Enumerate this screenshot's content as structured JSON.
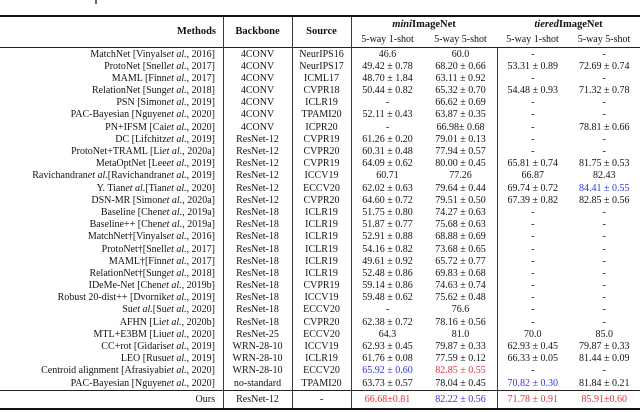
{
  "table": {
    "header": {
      "methods": "Methods",
      "backbone": "Backbone",
      "source": "Source",
      "groups": [
        {
          "prefix": "mini",
          "suffix": "ImageNet"
        },
        {
          "prefix": "tiered",
          "suffix": "ImageNet"
        }
      ],
      "subcolumns": [
        "5-way 1-shot",
        "5-way 5-shot",
        "5-way 1-shot",
        "5-way 5-shot"
      ]
    },
    "highlight_colors": {
      "red": "#e03434",
      "blue": "#3434e0"
    },
    "rows": [
      {
        "method": "MatchNet [Vinyals et al., 2016]",
        "backbone": "4CONV",
        "source": "NeurIPS16",
        "values": [
          "46.6",
          "60.0",
          "-",
          "-"
        ]
      },
      {
        "method": "ProtoNet [Snell et al., 2017]",
        "backbone": "4CONV",
        "source": "NeurIPS17",
        "values": [
          "49.42 ± 0.78",
          "68.20 ± 0.66",
          "53.31 ± 0.89",
          "72.69 ± 0.74"
        ]
      },
      {
        "method": "MAML [Finn et al., 2017]",
        "backbone": "4CONV",
        "source": "ICML17",
        "values": [
          "48.70 ± 1.84",
          "63.11 ± 0.92",
          "-",
          "-"
        ]
      },
      {
        "method": "RelationNet [Sung et al., 2018]",
        "backbone": "4CONV",
        "source": "CVPR18",
        "values": [
          "50.44 ± 0.82",
          "65.32 ± 0.70",
          "54.48 ± 0.93",
          "71.32 ± 0.78"
        ]
      },
      {
        "method": "PSN [Simon et al., 2019]",
        "backbone": "4CONV",
        "source": "ICLR19",
        "values": [
          "-",
          "66.62 ± 0.69",
          "-",
          "-"
        ]
      },
      {
        "method": "PAC-Bayesian [Nguyen et al., 2020]",
        "backbone": "4CONV",
        "source": "TPAMI20",
        "values": [
          "52.11 ± 0.43",
          "63.87 ± 0.35",
          "-",
          "-"
        ]
      },
      {
        "method": "PN+IFSM [Cai et al., 2020]",
        "backbone": "4CONV",
        "source": "ICPR20",
        "values": [
          "-",
          "66.98± 0.68",
          "-",
          "78.81 ± 0.66"
        ]
      },
      {
        "method": "DC [Lifchitz et al., 2019]",
        "backbone": "ResNet-12",
        "source": "CVPR19",
        "values": [
          "61.26 ± 0.20",
          "79.01 ± 0.13",
          "-",
          "-"
        ]
      },
      {
        "method": "ProtoNet+TRAML [Li et al., 2020a]",
        "backbone": "ResNet-12",
        "source": "CVPR20",
        "values": [
          "60.31 ± 0.48",
          "77.94 ± 0.57",
          "-",
          "-"
        ]
      },
      {
        "method": "MetaOptNet [Lee et al., 2019]",
        "backbone": "ResNet-12",
        "source": "CVPR19",
        "values": [
          "64.09 ± 0.62",
          "80.00 ± 0.45",
          "65.81 ± 0.74",
          "81.75 ± 0.53"
        ]
      },
      {
        "method": "Ravichandran et al. [Ravichandran et al., 2019]",
        "backbone": "ResNet-12",
        "source": "ICCV19",
        "values": [
          "60.71",
          "77.26",
          "66.87",
          "82.43"
        ]
      },
      {
        "method": "Y. Tian et al. [Tian et al., 2020]",
        "backbone": "ResNet-12",
        "source": "ECCV20",
        "values": [
          "62.02 ± 0.63",
          "79.64 ± 0.44",
          "69.74 ± 0.72",
          "84.41 ± 0.55"
        ],
        "value_colors": [
          "",
          "",
          "",
          "blue"
        ]
      },
      {
        "method": "DSN-MR [Simon et al., 2020a]",
        "backbone": "ResNet-12",
        "source": "CVPR20",
        "values": [
          "64.60 ± 0.72",
          "79.51 ± 0.50",
          "67.39 ± 0.82",
          "82.85 ± 0.56"
        ]
      },
      {
        "method": "Baseline [Chen et al., 2019a]",
        "backbone": "ResNet-18",
        "source": "ICLR19",
        "values": [
          "51.75 ± 0.80",
          "74.27 ± 0.63",
          "-",
          "-"
        ]
      },
      {
        "method": "Baseline++ [Chen et al., 2019a]",
        "backbone": "ResNet-18",
        "source": "ICLR19",
        "values": [
          "51.87 ± 0.77",
          "75.68 ± 0.63",
          "-",
          "-"
        ]
      },
      {
        "method": "MatchNet†[Vinyals et al., 2016]",
        "backbone": "ResNet-18",
        "source": "ICLR19",
        "values": [
          "52.91 ± 0.88",
          "68.88 ± 0.69",
          "-",
          "-"
        ]
      },
      {
        "method": "ProtoNet†[Snell et al., 2017]",
        "backbone": "ResNet-18",
        "source": "ICLR19",
        "values": [
          "54.16 ± 0.82",
          "73.68 ± 0.65",
          "-",
          "-"
        ]
      },
      {
        "method": "MAML†[Finn et al., 2017]",
        "backbone": "ResNet-18",
        "source": "ICLR19",
        "values": [
          "49.61 ± 0.92",
          "65.72 ± 0.77",
          "-",
          "-"
        ]
      },
      {
        "method": "RelationNet†[Sung et al., 2018]",
        "backbone": "ResNet-18",
        "source": "ICLR19",
        "values": [
          "52.48 ± 0.86",
          "69.83 ± 0.68",
          "-",
          "-"
        ]
      },
      {
        "method": "IDeMe-Net [Chen et al., 2019b]",
        "backbone": "ResNet-18",
        "source": "CVPR19",
        "values": [
          "59.14 ± 0.86",
          "74.63 ± 0.74",
          "-",
          "-"
        ]
      },
      {
        "method": "Robust 20-dist++ [Dvornik et al., 2019]",
        "backbone": "ResNet-18",
        "source": "ICCV19",
        "values": [
          "59.48 ± 0.62",
          "75.62 ± 0.48",
          "-",
          "-"
        ]
      },
      {
        "method": "Su et al. [Su et al., 2020]",
        "backbone": "ResNet-18",
        "source": "ECCV20",
        "values": [
          "-",
          "76.6",
          "-",
          "-"
        ]
      },
      {
        "method": "AFHN [Li et al., 2020b]",
        "backbone": "ResNet-18",
        "source": "CVPR20",
        "values": [
          "62.38 ± 0.72",
          "78.16 ± 0.56",
          "-",
          "-"
        ]
      },
      {
        "method": "MTL+E3BM [Liu et al., 2020]",
        "backbone": "ResNet-25",
        "source": "ECCV20",
        "values": [
          "64.3",
          "81.0",
          "70.0",
          "85.0"
        ]
      },
      {
        "method": "CC+rot [Gidaris et al., 2019]",
        "backbone": "WRN-28-10",
        "source": "ICCV19",
        "values": [
          "62.93 ± 0.45",
          "79.87 ± 0.33",
          "62.93 ± 0.45",
          "79.87 ± 0.33"
        ]
      },
      {
        "method": "LEO [Rusu et al., 2019]",
        "backbone": "WRN-28-10",
        "source": "ICLR19",
        "values": [
          "61.76 ± 0.08",
          "77.59 ± 0.12",
          "66.33 ± 0.05",
          "81.44 ± 0.09"
        ]
      },
      {
        "method": "Centroid alignment [Afrasiyabi et al., 2020]",
        "backbone": "WRN-28-10",
        "source": "ECCV20",
        "values": [
          "65.92 ± 0.60",
          "82.85 ± 0.55",
          "-",
          "-"
        ],
        "value_colors": [
          "blue",
          "red",
          "",
          ""
        ]
      },
      {
        "method": "PAC-Bayesian [Nguyen et al., 2020]",
        "backbone": "no-standard",
        "source": "TPAMI20",
        "values": [
          "63.73 ± 0.57",
          "78.04 ± 0.45",
          "70.82 ± 0.30",
          "81.84 ± 0.21"
        ],
        "value_colors": [
          "",
          "",
          "blue",
          ""
        ]
      }
    ],
    "ours": {
      "method": "Ours",
      "backbone": "ResNet-12",
      "source": "-",
      "values": [
        "66.68±0.81",
        "82.22 ± 0.56",
        "71.78 ± 0.91",
        "85.91±0.60"
      ],
      "value_colors": [
        "red",
        "blue",
        "red",
        "red"
      ]
    }
  }
}
